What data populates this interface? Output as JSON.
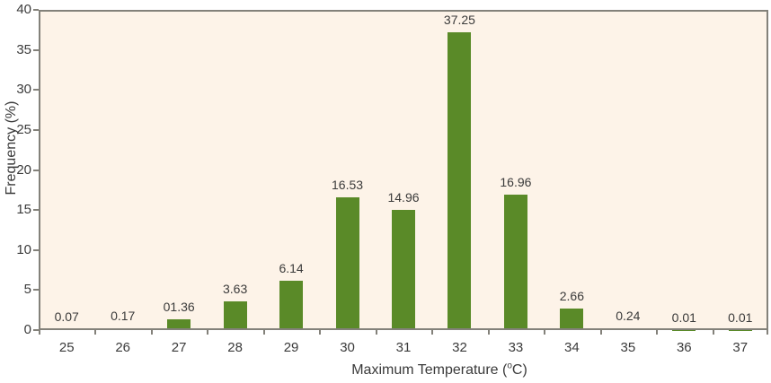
{
  "figure": {
    "background_color": "#ffffff",
    "plot_background_color": "#fdf3e8",
    "bar_color": "#5a8a28",
    "frame_color": "#83817a",
    "text_color": "#3a3a3a"
  },
  "chart_data": {
    "type": "bar",
    "title": "",
    "xlabel": "Maximum Temperature (°C)",
    "ylabel": "Frequency (%)",
    "categories": [
      "25",
      "26",
      "27",
      "28",
      "29",
      "30",
      "31",
      "32",
      "33",
      "34",
      "35",
      "36",
      "37"
    ],
    "values": [
      0.07,
      0.17,
      1.36,
      3.63,
      6.14,
      16.53,
      14.96,
      37.25,
      16.96,
      2.66,
      0.24,
      0.01,
      0.01
    ],
    "bar_labels": [
      "0.07",
      "0.17",
      "01.36",
      "3.63",
      "6.14",
      "16.53",
      "14.96",
      "37.25",
      "16.96",
      "2.66",
      "0.24",
      "0.01",
      "0.01"
    ],
    "ylim": [
      0,
      40
    ],
    "yticks": [
      "0",
      "5",
      "10",
      "15",
      "20",
      "25",
      "30",
      "35",
      "40"
    ],
    "grid": "off",
    "legend": "none",
    "xlabel_render": {
      "prefix": "Maximum Temperature (",
      "sup": "o",
      "suffix": "C)"
    }
  }
}
